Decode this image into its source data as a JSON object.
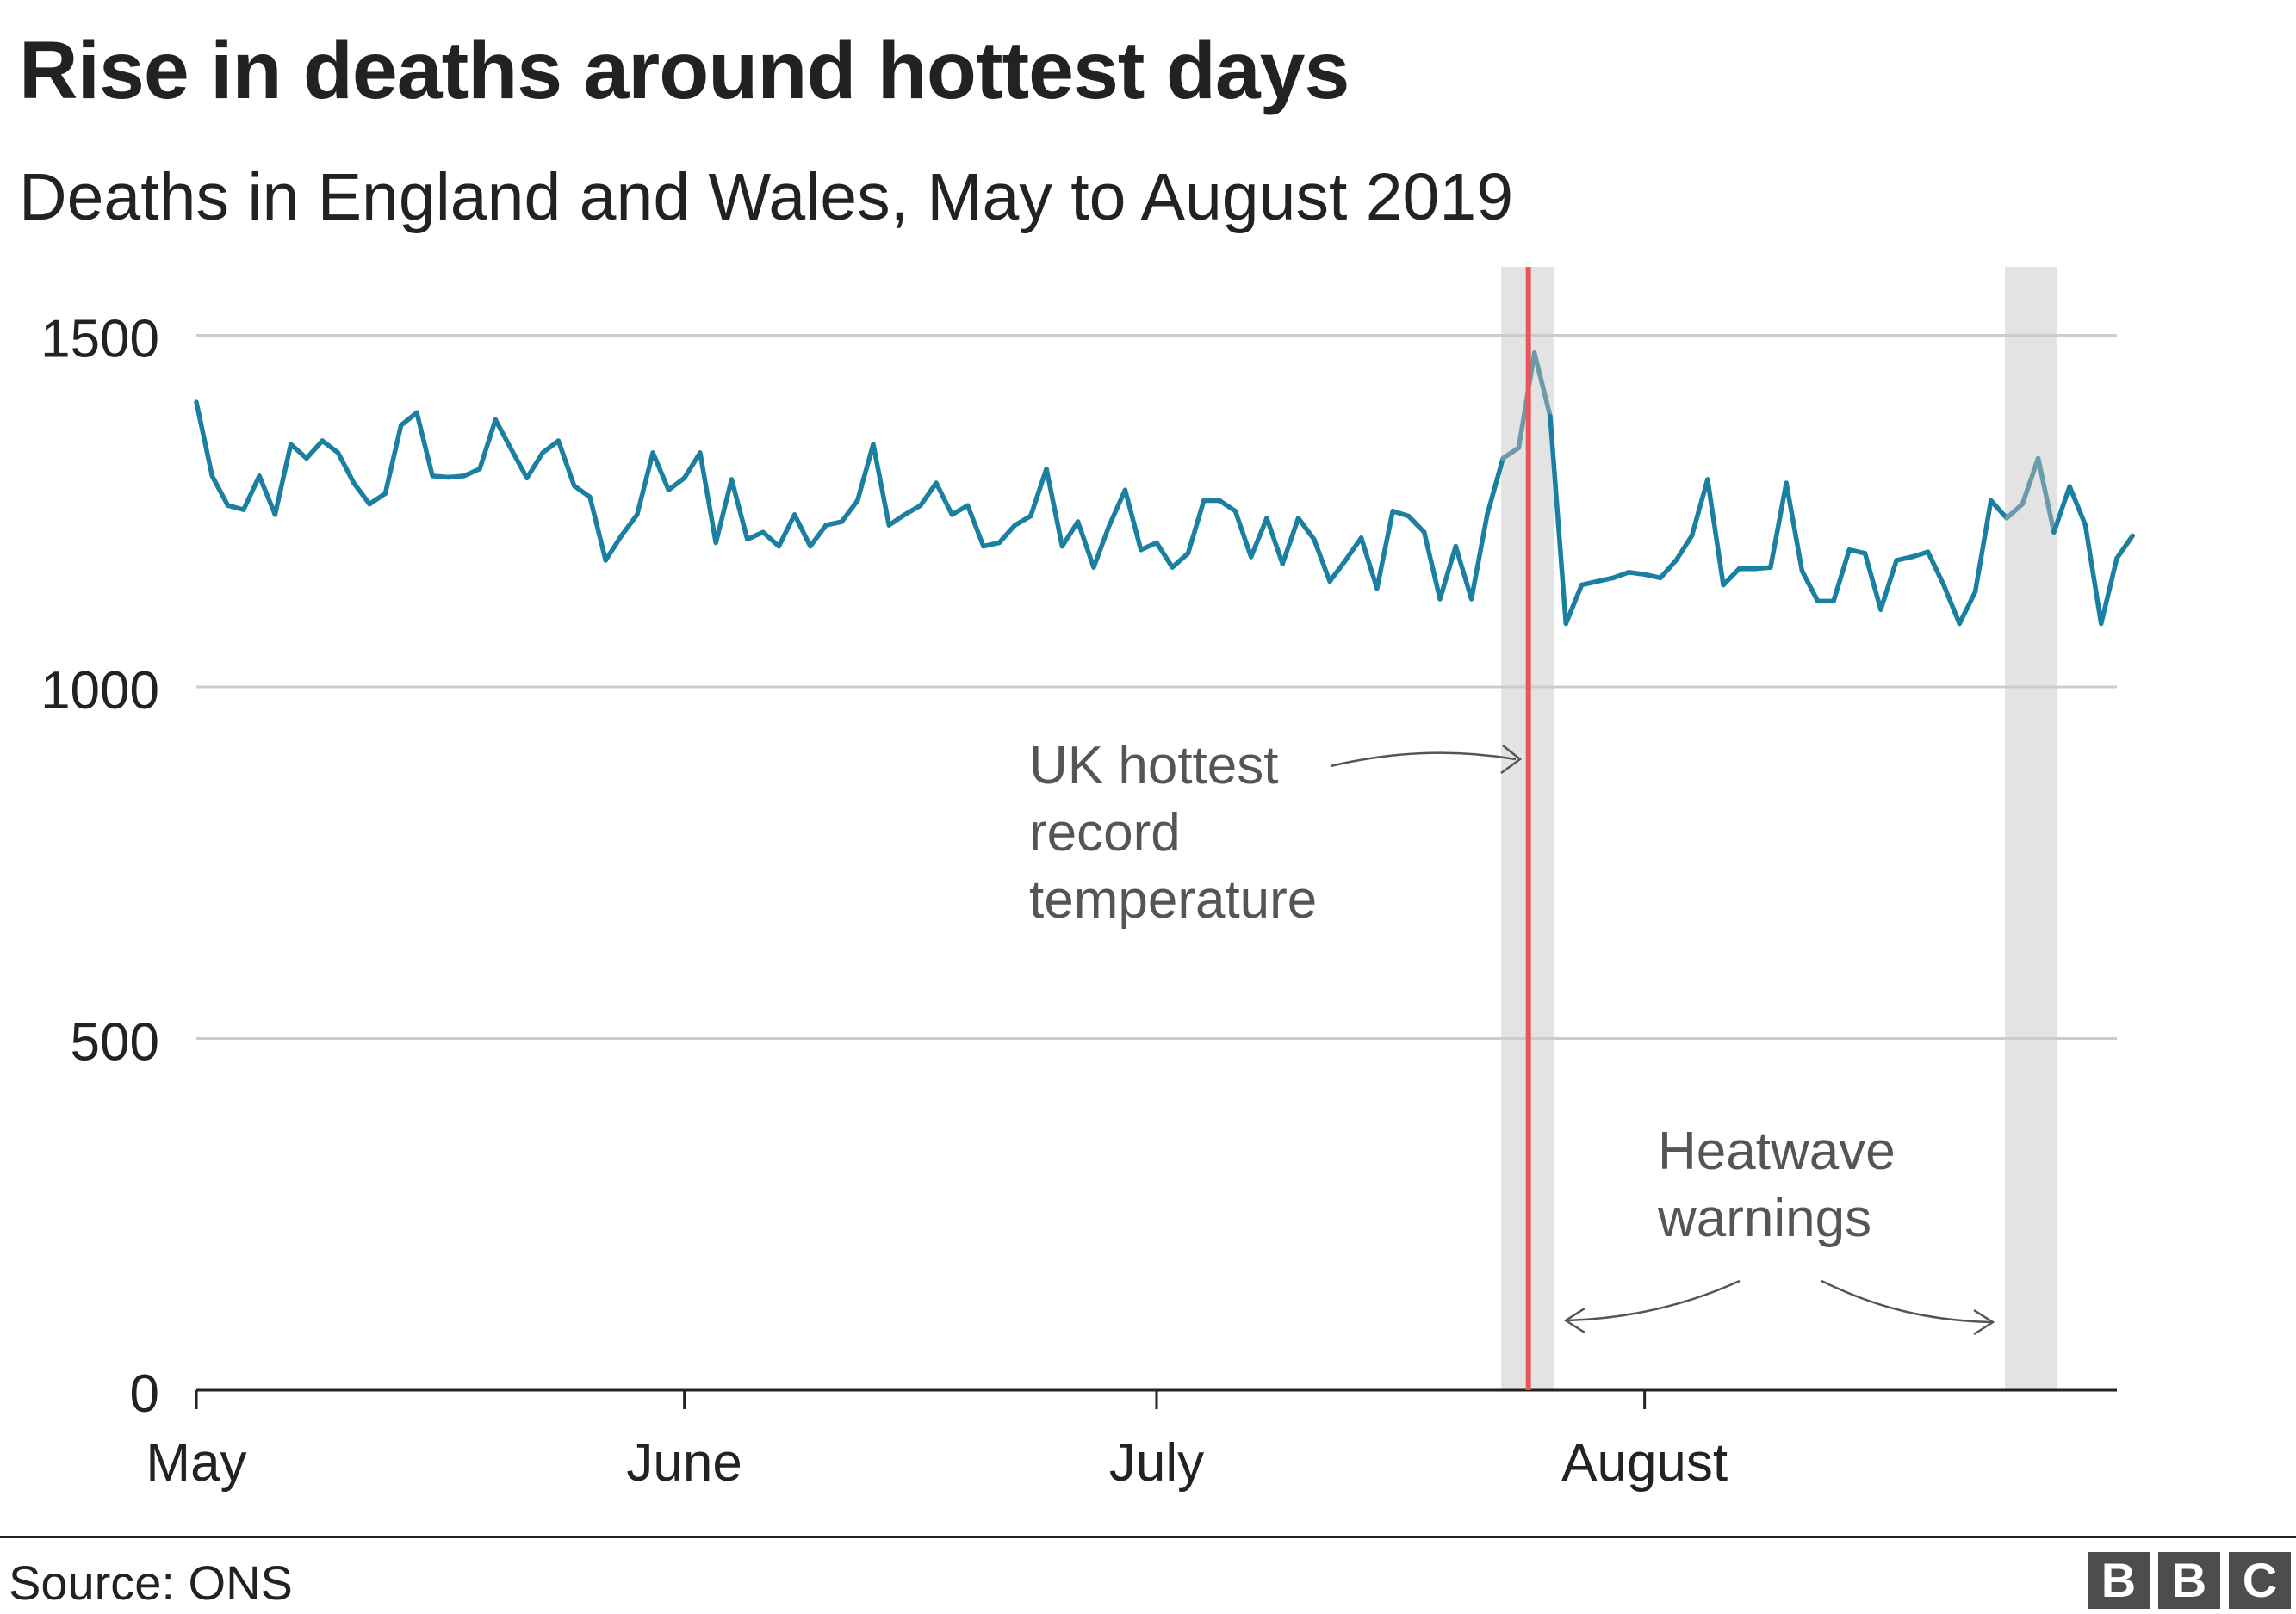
{
  "title": "Rise in deaths around hottest days",
  "subtitle": "Deaths in England and Wales, May to August 2019",
  "source": "Source: ONS",
  "logo": "BBC",
  "colors": {
    "line": "#1a7fa0",
    "line_highlight": "#6b9aa8",
    "highlight_band": "#e3e3e3",
    "record_marker": "#e8555a",
    "grid": "#cccccc",
    "annotation_text": "#555555"
  },
  "chart_data": {
    "type": "line",
    "title": "Rise in deaths around hottest days",
    "subtitle": "Deaths in England and Wales, May to August 2019",
    "xlabel": "",
    "ylabel": "",
    "ylim": [
      0,
      1600
    ],
    "yticks": [
      0,
      500,
      1000,
      1500
    ],
    "ytick_labels": [
      "0",
      "500",
      "1000",
      "1500"
    ],
    "xlim": [
      "2019-05-01",
      "2019-08-31"
    ],
    "xticks": [
      "2019-05-01",
      "2019-06-01",
      "2019-07-01",
      "2019-08-01"
    ],
    "xtick_labels": [
      "May",
      "June",
      "July",
      "August"
    ],
    "grid": true,
    "series": [
      {
        "x_start": "2019-05-01",
        "values": [
          1405,
          1300,
          1258,
          1252,
          1300,
          1245,
          1345,
          1325,
          1350,
          1333,
          1290,
          1260,
          1275,
          1372,
          1390,
          1300,
          1298,
          1300,
          1310,
          1380,
          1338,
          1297,
          1333,
          1350,
          1286,
          1270,
          1180,
          1215,
          1245,
          1333,
          1280,
          1297,
          1333,
          1205,
          1295,
          1210,
          1220,
          1200,
          1245,
          1200,
          1230,
          1235,
          1265,
          1345,
          1230,
          1245,
          1258,
          1290,
          1245,
          1258,
          1200,
          1205,
          1230,
          1243,
          1310,
          1200,
          1235,
          1170,
          1230,
          1280,
          1195,
          1205,
          1170,
          1190,
          1265,
          1265,
          1250,
          1185,
          1240,
          1175,
          1240,
          1210,
          1150,
          1180,
          1212,
          1140,
          1250,
          1243,
          1220,
          1125,
          1200,
          1125,
          1245,
          1325,
          1340,
          1475,
          1385,
          1090,
          1145,
          1150,
          1155,
          1163,
          1160,
          1155,
          1180,
          1215,
          1295,
          1145,
          1168,
          1168,
          1170,
          1290,
          1165,
          1122,
          1122,
          1195,
          1190,
          1110,
          1180,
          1185,
          1192,
          1145,
          1090,
          1135,
          1265,
          1240,
          1260,
          1325,
          1220,
          1285,
          1230,
          1090,
          1183,
          1215
        ]
      }
    ],
    "highlight_bands": [
      {
        "start": "2019-07-23",
        "end": "2019-07-26"
      },
      {
        "start": "2019-08-24",
        "end": "2019-08-27"
      }
    ],
    "marker_line": {
      "date": "2019-07-25"
    },
    "annotations": [
      {
        "text_lines": [
          "UK hottest",
          "record",
          "temperature"
        ],
        "points_to": "2019-07-25"
      },
      {
        "text_lines": [
          "Heatwave",
          "warnings"
        ],
        "points_to": [
          "2019-07-26",
          "2019-08-24"
        ]
      }
    ]
  }
}
